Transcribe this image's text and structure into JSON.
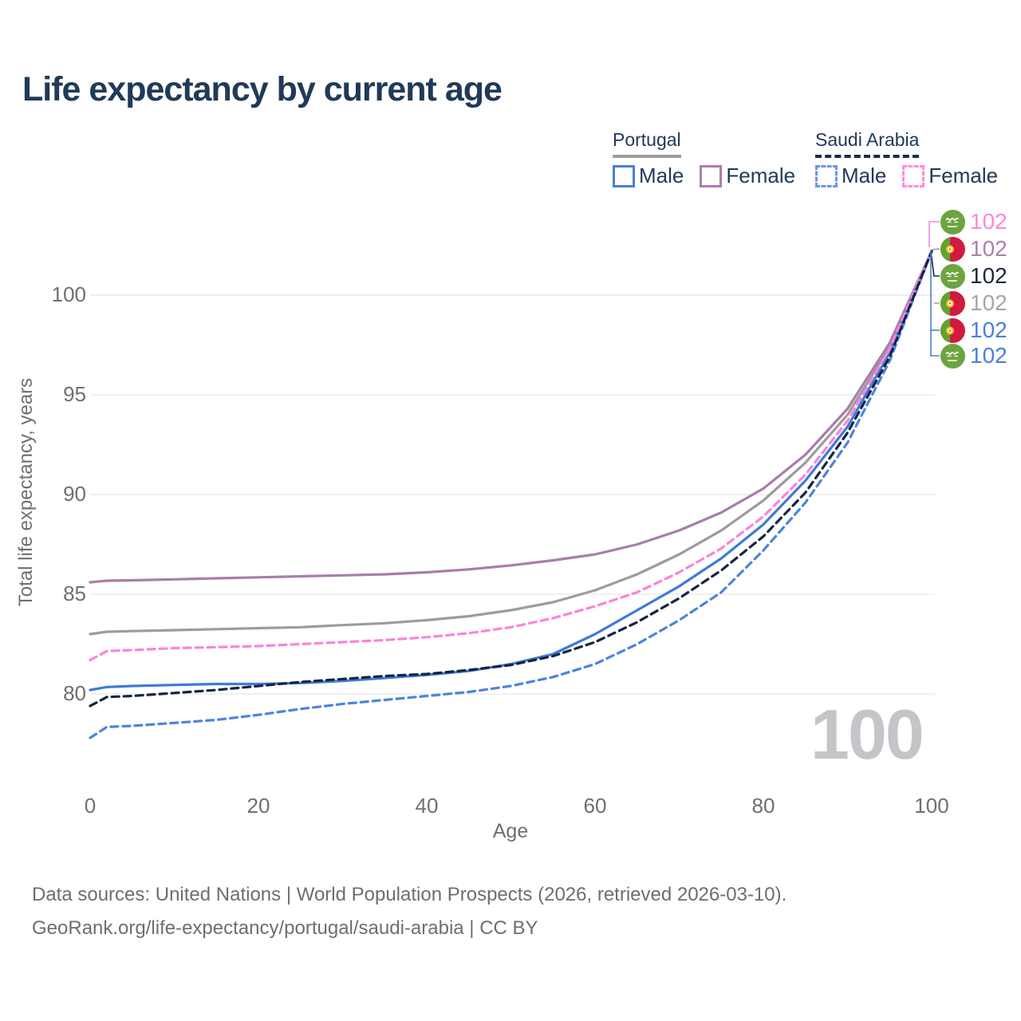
{
  "title": "Life expectancy by current age",
  "legend": {
    "groups": [
      {
        "label": "Portugal",
        "line_style": "solid",
        "underline_color": "#9e9e9e",
        "items": [
          {
            "label": "Male",
            "color": "#4a80d9"
          },
          {
            "label": "Female",
            "color": "#b07ab3"
          }
        ]
      },
      {
        "label": "Saudi Arabia",
        "line_style": "dashed",
        "underline_color": "#1b2b4a",
        "items": [
          {
            "label": "Male",
            "color": "#6b96e8"
          },
          {
            "label": "Female",
            "color": "#ff8ce0"
          }
        ]
      }
    ]
  },
  "y_axis": {
    "title": "Total life expectancy, years",
    "ticks": [
      100,
      95,
      90,
      85,
      80
    ]
  },
  "x_axis": {
    "title": "Age",
    "ticks": [
      0,
      20,
      40,
      60,
      80,
      100
    ]
  },
  "watermark": "100",
  "end_labels": [
    {
      "flag": "saudi-arabia",
      "value": "102",
      "color": "#fc86de"
    },
    {
      "flag": "portugal",
      "value": "102",
      "color": "#ad7fad"
    },
    {
      "flag": "saudi-arabia",
      "value": "102",
      "color": "#1b2940"
    },
    {
      "flag": "portugal",
      "value": "102",
      "color": "#a7a7a7"
    },
    {
      "flag": "portugal",
      "value": "102",
      "color": "#4a80d9"
    },
    {
      "flag": "saudi-arabia",
      "value": "102",
      "color": "#4a80d9"
    }
  ],
  "footer": {
    "line1": "Data sources: United Nations | World Population Prospects (2026, retrieved 2026-03-10).",
    "line2": "GeoRank.org/life-expectancy/portugal/saudi-arabia | CC BY"
  },
  "colors": {
    "title_text": "#203a57",
    "axis_text": "#6f6f6f",
    "gridline": "#ececec",
    "watermark": "#c5c5c9",
    "portugal_male": "#3e7bd7",
    "portugal_female": "#a97cac",
    "portugal_total": "#9c9c9c",
    "saudi_male": "#4b84de",
    "saudi_female": "#fb82dc",
    "saudi_total": "#152440",
    "saudi_flag_green": "#6ca440",
    "portugal_flag_green": "#61a233",
    "portugal_flag_red": "#d11a3f"
  },
  "chart_data": {
    "type": "line",
    "title": "Life expectancy by current age",
    "xlabel": "Age",
    "ylabel": "Total life expectancy, years",
    "xlim": [
      0,
      100
    ],
    "ylim": [
      76.5,
      103
    ],
    "grid": "horizontal",
    "legend_position": "top-right",
    "x": [
      0,
      2,
      5,
      10,
      15,
      20,
      25,
      30,
      35,
      40,
      45,
      50,
      55,
      60,
      65,
      70,
      75,
      80,
      85,
      90,
      95,
      100
    ],
    "series": [
      {
        "name": "Portugal Total",
        "country": "Portugal",
        "sex": "total",
        "color": "#9c9c9c",
        "dash": "solid",
        "values": [
          83.0,
          83.12,
          83.15,
          83.2,
          83.25,
          83.3,
          83.35,
          83.45,
          83.55,
          83.7,
          83.9,
          84.2,
          84.6,
          85.2,
          86.0,
          87.0,
          88.2,
          89.7,
          91.6,
          94.0,
          97.4,
          102.2
        ]
      },
      {
        "name": "Portugal Female",
        "country": "Portugal",
        "sex": "female",
        "color": "#a97cac",
        "dash": "solid",
        "values": [
          85.6,
          85.68,
          85.7,
          85.75,
          85.8,
          85.85,
          85.9,
          85.95,
          86.0,
          86.1,
          86.25,
          86.45,
          86.7,
          87.0,
          87.5,
          88.2,
          89.1,
          90.3,
          92.0,
          94.3,
          97.6,
          102.2
        ]
      },
      {
        "name": "Portugal Male",
        "country": "Portugal",
        "sex": "male",
        "color": "#3e7bd7",
        "dash": "solid",
        "values": [
          80.2,
          80.35,
          80.4,
          80.45,
          80.5,
          80.5,
          80.55,
          80.65,
          80.8,
          80.95,
          81.15,
          81.5,
          82.0,
          83.0,
          84.2,
          85.4,
          86.8,
          88.5,
          90.7,
          93.4,
          97.1,
          102.2
        ]
      },
      {
        "name": "Saudi Arabia Male",
        "country": "Saudi Arabia",
        "sex": "male",
        "color": "#4b84de",
        "dash": "dashed",
        "values": [
          77.8,
          78.35,
          78.4,
          78.55,
          78.7,
          78.95,
          79.25,
          79.5,
          79.7,
          79.9,
          80.1,
          80.4,
          80.85,
          81.5,
          82.5,
          83.7,
          85.1,
          87.2,
          89.6,
          92.6,
          96.7,
          102.2
        ]
      },
      {
        "name": "Saudi Arabia Female",
        "country": "Saudi Arabia",
        "sex": "female",
        "color": "#fb82dc",
        "dash": "dashed",
        "values": [
          81.7,
          82.15,
          82.2,
          82.3,
          82.35,
          82.4,
          82.5,
          82.6,
          82.7,
          82.85,
          83.05,
          83.35,
          83.8,
          84.4,
          85.1,
          86.1,
          87.3,
          88.9,
          91.0,
          93.7,
          97.3,
          102.2
        ]
      },
      {
        "name": "Saudi Arabia Total",
        "country": "Saudi Arabia",
        "sex": "total",
        "color": "#152440",
        "dash": "dashed",
        "values": [
          79.4,
          79.85,
          79.9,
          80.05,
          80.2,
          80.4,
          80.6,
          80.75,
          80.9,
          81.0,
          81.2,
          81.45,
          81.9,
          82.6,
          83.6,
          84.8,
          86.2,
          87.9,
          90.1,
          93.1,
          96.9,
          102.2
        ]
      }
    ],
    "end_value_labels": [
      102,
      102,
      102,
      102,
      102,
      102
    ]
  }
}
